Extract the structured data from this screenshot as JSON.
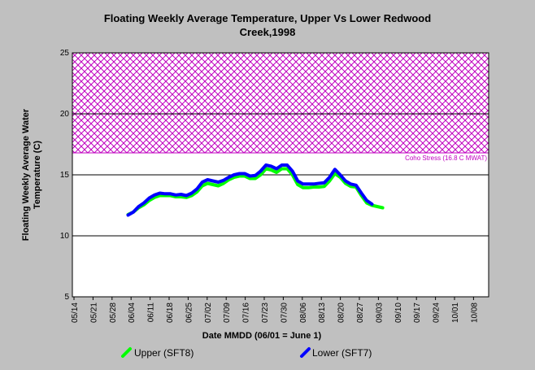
{
  "chart_data": {
    "type": "line",
    "title_line1": "Floating Weekly Average Temperature, Upper Vs Lower Redwood",
    "title_line2": "Creek,1998",
    "ylabel_line1": "Floating Weekly Average Water",
    "ylabel_line2": "Temperature (C)",
    "xlabel": "Date MMDD (06/01 = June 1)",
    "ylim": [
      5,
      25
    ],
    "yticks": [
      5,
      10,
      15,
      20,
      25
    ],
    "xlim": [
      0,
      157
    ],
    "xticks": [
      "05/14",
      "05/21",
      "05/28",
      "06/04",
      "06/11",
      "06/18",
      "06/25",
      "07/02",
      "07/09",
      "07/16",
      "07/23",
      "07/30",
      "08/06",
      "08/13",
      "08/20",
      "08/27",
      "09/03",
      "09/10",
      "09/17",
      "09/24",
      "10/01",
      "10/08"
    ],
    "grid": "horizontal",
    "threshold": {
      "value": 16.8,
      "label": "Coho Stress (16.8 C MWAT)",
      "color": "#c000c0"
    },
    "legend_position": "bottom",
    "series": [
      {
        "name": "Upper (SFT8)",
        "color": "#00ff00",
        "points": [
          [
            21,
            11.75
          ],
          [
            23,
            11.95
          ],
          [
            25,
            12.3
          ],
          [
            27,
            12.55
          ],
          [
            29,
            12.9
          ],
          [
            31,
            13.15
          ],
          [
            33,
            13.3
          ],
          [
            35,
            13.3
          ],
          [
            37,
            13.3
          ],
          [
            39,
            13.2
          ],
          [
            41,
            13.2
          ],
          [
            43,
            13.15
          ],
          [
            45,
            13.3
          ],
          [
            47,
            13.6
          ],
          [
            49,
            14.1
          ],
          [
            51,
            14.3
          ],
          [
            53,
            14.2
          ],
          [
            55,
            14.1
          ],
          [
            57,
            14.3
          ],
          [
            59,
            14.6
          ],
          [
            61,
            14.8
          ],
          [
            63,
            14.9
          ],
          [
            65,
            14.9
          ],
          [
            67,
            14.7
          ],
          [
            69,
            14.7
          ],
          [
            71,
            15.0
          ],
          [
            73,
            15.5
          ],
          [
            75,
            15.4
          ],
          [
            77,
            15.2
          ],
          [
            79,
            15.5
          ],
          [
            81,
            15.5
          ],
          [
            83,
            15.0
          ],
          [
            85,
            14.2
          ],
          [
            87,
            13.95
          ],
          [
            89,
            13.95
          ],
          [
            91,
            14.0
          ],
          [
            93,
            14.0
          ],
          [
            95,
            14.05
          ],
          [
            97,
            14.5
          ],
          [
            99,
            15.1
          ],
          [
            101,
            14.8
          ],
          [
            103,
            14.3
          ],
          [
            105,
            14.05
          ],
          [
            107,
            14.0
          ],
          [
            109,
            13.3
          ],
          [
            111,
            12.7
          ],
          [
            113,
            12.5
          ],
          [
            115,
            12.4
          ],
          [
            117,
            12.3
          ]
        ]
      },
      {
        "name": "Lower (SFT7)",
        "color": "#0000ff",
        "points": [
          [
            21,
            11.7
          ],
          [
            23,
            11.95
          ],
          [
            25,
            12.4
          ],
          [
            27,
            12.7
          ],
          [
            29,
            13.1
          ],
          [
            31,
            13.35
          ],
          [
            33,
            13.5
          ],
          [
            35,
            13.45
          ],
          [
            37,
            13.45
          ],
          [
            39,
            13.35
          ],
          [
            41,
            13.4
          ],
          [
            43,
            13.3
          ],
          [
            45,
            13.5
          ],
          [
            47,
            13.85
          ],
          [
            49,
            14.4
          ],
          [
            51,
            14.6
          ],
          [
            53,
            14.5
          ],
          [
            55,
            14.4
          ],
          [
            57,
            14.55
          ],
          [
            59,
            14.8
          ],
          [
            61,
            15.0
          ],
          [
            63,
            15.1
          ],
          [
            65,
            15.1
          ],
          [
            67,
            14.9
          ],
          [
            69,
            14.95
          ],
          [
            71,
            15.3
          ],
          [
            73,
            15.8
          ],
          [
            75,
            15.7
          ],
          [
            77,
            15.5
          ],
          [
            79,
            15.8
          ],
          [
            81,
            15.8
          ],
          [
            83,
            15.3
          ],
          [
            85,
            14.5
          ],
          [
            87,
            14.25
          ],
          [
            89,
            14.25
          ],
          [
            91,
            14.25
          ],
          [
            93,
            14.3
          ],
          [
            95,
            14.35
          ],
          [
            97,
            14.8
          ],
          [
            99,
            15.45
          ],
          [
            101,
            15.0
          ],
          [
            103,
            14.5
          ],
          [
            105,
            14.25
          ],
          [
            107,
            14.15
          ],
          [
            109,
            13.5
          ],
          [
            111,
            12.9
          ],
          [
            113,
            12.6
          ]
        ]
      }
    ]
  }
}
